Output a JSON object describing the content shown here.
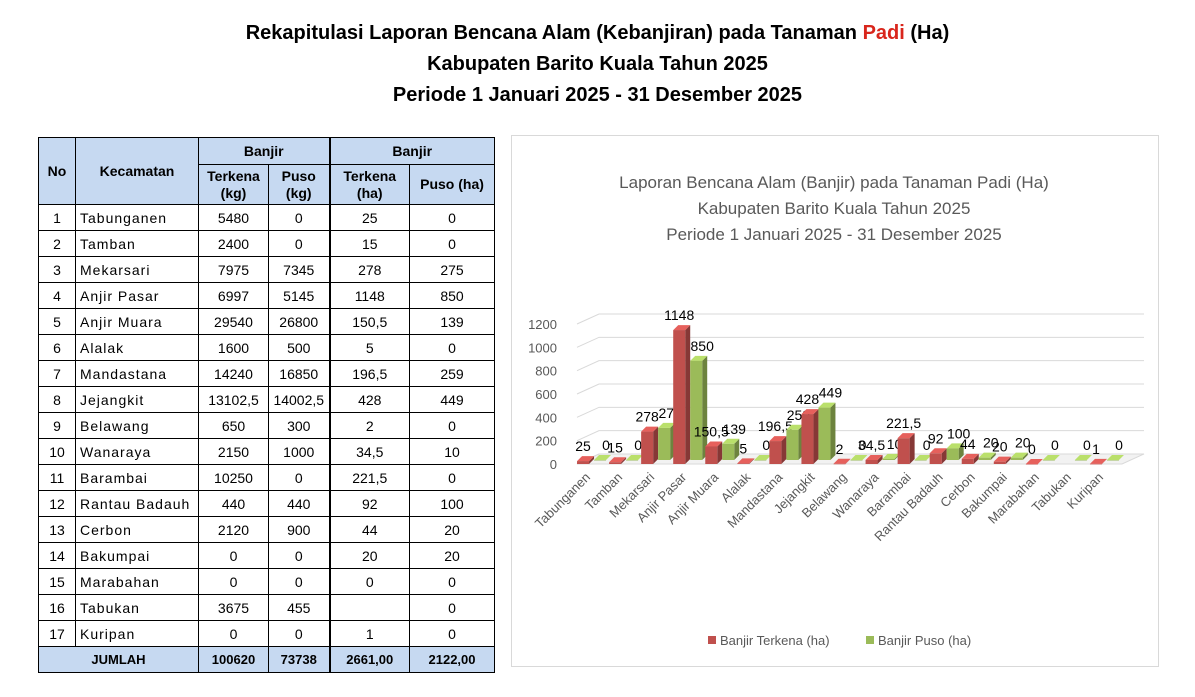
{
  "title": {
    "line1_pre": "Rekapitulasi Laporan Bencana Alam (Kebanjiran)  pada Tanaman ",
    "line1_highlight": "Padi",
    "line1_post": " (Ha)",
    "line2": "Kabupaten Barito Kuala Tahun 2025",
    "line3": "Periode 1 Januari 2025 - 31 Desember 2025"
  },
  "table": {
    "headers": {
      "no": "No",
      "kecamatan": "Kecamatan",
      "group1": "Banjir",
      "group2": "Banjir",
      "terkena_kg": "Terkena (kg)",
      "puso_kg": "Puso (kg)",
      "terkena_ha": "Terkena (ha)",
      "puso_ha": "Puso (ha)"
    },
    "rows": [
      {
        "no": "1",
        "kecamatan": "Tabunganen",
        "terkena_kg": "5480",
        "puso_kg": "0",
        "terkena_ha": "25",
        "puso_ha": "0"
      },
      {
        "no": "2",
        "kecamatan": "Tamban",
        "terkena_kg": "2400",
        "puso_kg": "0",
        "terkena_ha": "15",
        "puso_ha": "0"
      },
      {
        "no": "3",
        "kecamatan": "Mekarsari",
        "terkena_kg": "7975",
        "puso_kg": "7345",
        "terkena_ha": "278",
        "puso_ha": "275"
      },
      {
        "no": "4",
        "kecamatan": "Anjir Pasar",
        "terkena_kg": "6997",
        "puso_kg": "5145",
        "terkena_ha": "1148",
        "puso_ha": "850"
      },
      {
        "no": "5",
        "kecamatan": "Anjir Muara",
        "terkena_kg": "29540",
        "puso_kg": "26800",
        "terkena_ha": "150,5",
        "puso_ha": "139"
      },
      {
        "no": "6",
        "kecamatan": "Alalak",
        "terkena_kg": "1600",
        "puso_kg": "500",
        "terkena_ha": "5",
        "puso_ha": "0"
      },
      {
        "no": "7",
        "kecamatan": "Mandastana",
        "terkena_kg": "14240",
        "puso_kg": "16850",
        "terkena_ha": "196,5",
        "puso_ha": "259"
      },
      {
        "no": "8",
        "kecamatan": "Jejangkit",
        "terkena_kg": "13102,5",
        "puso_kg": "14002,5",
        "terkena_ha": "428",
        "puso_ha": "449"
      },
      {
        "no": "9",
        "kecamatan": "Belawang",
        "terkena_kg": "650",
        "puso_kg": "300",
        "terkena_ha": "2",
        "puso_ha": "0"
      },
      {
        "no": "10",
        "kecamatan": "Wanaraya",
        "terkena_kg": "2150",
        "puso_kg": "1000",
        "terkena_ha": "34,5",
        "puso_ha": "10"
      },
      {
        "no": "11",
        "kecamatan": "Barambai",
        "terkena_kg": "10250",
        "puso_kg": "0",
        "terkena_ha": "221,5",
        "puso_ha": "0"
      },
      {
        "no": "12",
        "kecamatan": "Rantau Badauh",
        "terkena_kg": "440",
        "puso_kg": "440",
        "terkena_ha": "92",
        "puso_ha": "100"
      },
      {
        "no": "13",
        "kecamatan": "Cerbon",
        "terkena_kg": "2120",
        "puso_kg": "900",
        "terkena_ha": "44",
        "puso_ha": "20"
      },
      {
        "no": "14",
        "kecamatan": "Bakumpai",
        "terkena_kg": "0",
        "puso_kg": "0",
        "terkena_ha": "20",
        "puso_ha": "20"
      },
      {
        "no": "15",
        "kecamatan": "Marabahan",
        "terkena_kg": "0",
        "puso_kg": "0",
        "terkena_ha": "0",
        "puso_ha": "0"
      },
      {
        "no": "16",
        "kecamatan": "Tabukan",
        "terkena_kg": "3675",
        "puso_kg": "455",
        "terkena_ha": "",
        "puso_ha": "0"
      },
      {
        "no": "17",
        "kecamatan": "Kuripan",
        "terkena_kg": "0",
        "puso_kg": "0",
        "terkena_ha": "1",
        "puso_ha": "0"
      }
    ],
    "total": {
      "label": "JUMLAH",
      "terkena_kg": "100620",
      "puso_kg": "73738",
      "terkena_ha": "2661,00",
      "puso_ha": "2122,00"
    }
  },
  "chart_data": {
    "type": "bar",
    "title": [
      "Laporan Bencana Alam (Banjir) pada Tanaman Padi (Ha)",
      "Kabupaten Barito Kuala Tahun 2025",
      "Periode 1 Januari 2025 - 31 Desember 2025"
    ],
    "categories": [
      "Tabunganen",
      "Tamban",
      "Mekarsari",
      "Anjir Pasar",
      "Anjir Muara",
      "Alalak",
      "Mandastana",
      "Jejangkit",
      "Belawang",
      "Wanaraya",
      "Barambai",
      "Rantau Badauh",
      "Cerbon",
      "Bakumpai",
      "Marabahan",
      "Tabukan",
      "Kuripan"
    ],
    "series": [
      {
        "name": "Banjir Terkena (ha)",
        "color": "#c0504d",
        "values": [
          25,
          15,
          278,
          1148,
          150.5,
          5,
          196.5,
          428,
          2,
          34.5,
          221.5,
          92,
          44,
          20,
          0,
          null,
          1
        ],
        "labels": [
          "25",
          "15",
          "278",
          "1148",
          "150,5",
          "5",
          "196,5",
          "428",
          "2",
          "34,5",
          "221,5",
          "92",
          "44",
          "20",
          "0",
          "",
          "1"
        ]
      },
      {
        "name": "Banjir Puso (ha)",
        "color": "#9bbb59",
        "values": [
          0,
          0,
          275,
          850,
          139,
          0,
          259,
          449,
          0,
          10,
          0,
          100,
          20,
          20,
          0,
          0,
          0
        ],
        "labels": [
          "0",
          "0",
          "275",
          "850",
          "139",
          "0",
          "259",
          "449",
          "0",
          "10",
          "0",
          "100",
          "20",
          "20",
          "0",
          "0",
          "0"
        ]
      }
    ],
    "yticks": [
      "0",
      "200",
      "400",
      "600",
      "800",
      "1000",
      "1200"
    ],
    "ylim": [
      0,
      1200
    ],
    "legend": "bottom"
  }
}
